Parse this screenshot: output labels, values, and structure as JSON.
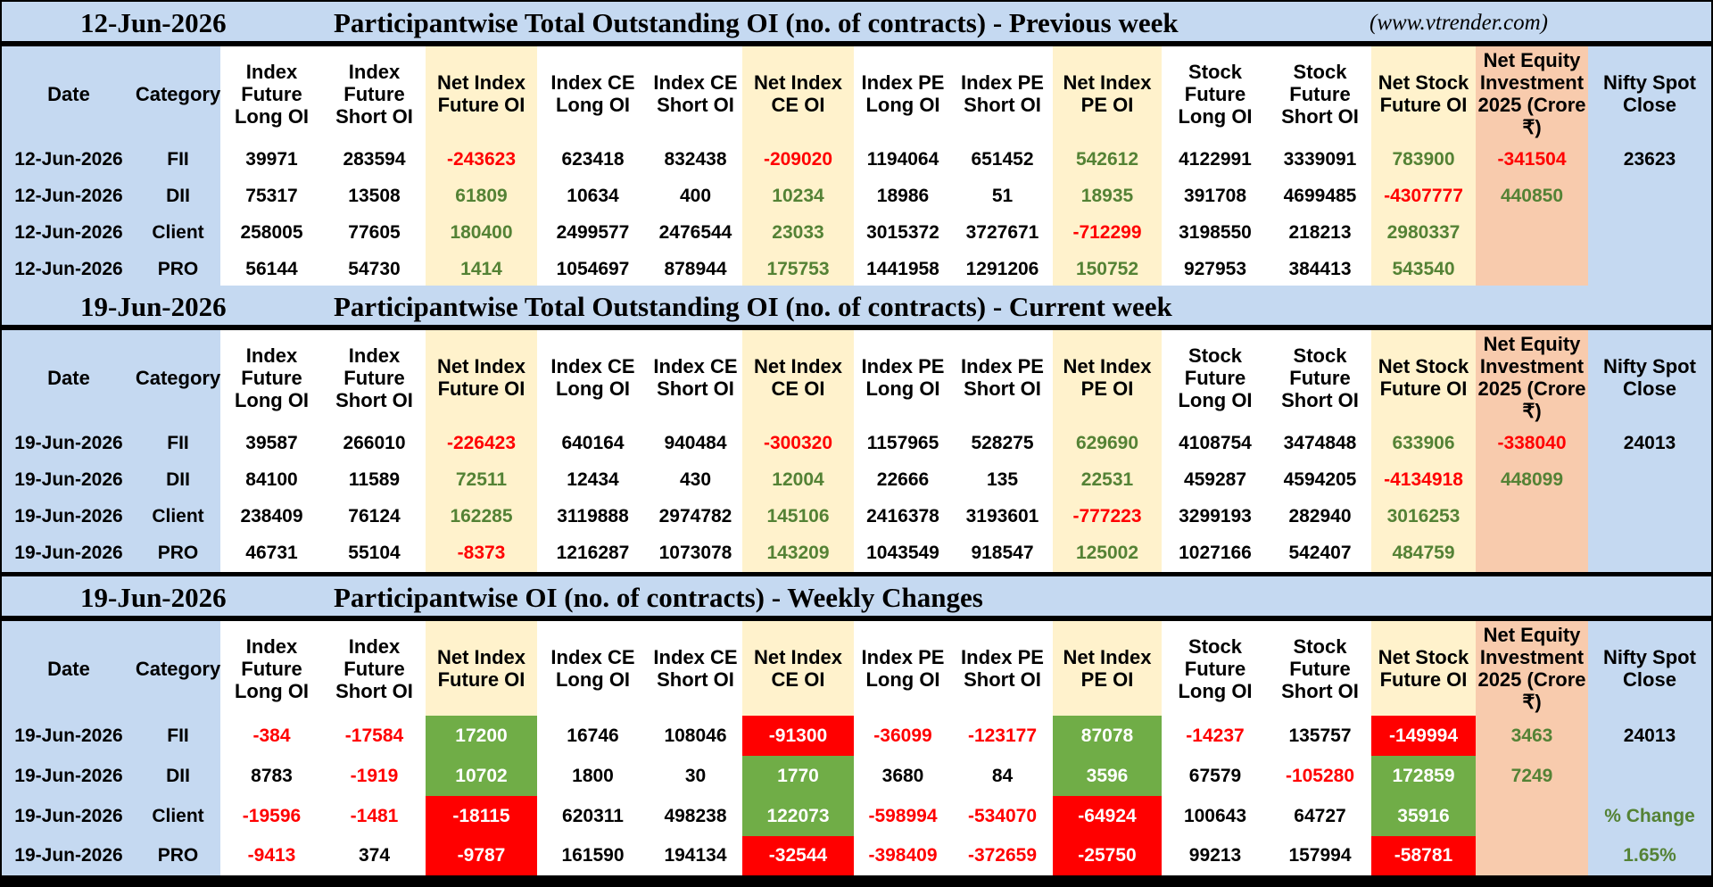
{
  "headers": [
    "Date",
    "Category",
    "Index Future Long OI",
    "Index Future Short OI",
    "Net Index Future OI",
    "Index CE Long OI",
    "Index CE Short OI",
    "Net Index CE OI",
    "Index PE Long OI",
    "Index PE Short OI",
    "Net Index PE OI",
    "Stock Future Long OI",
    "Stock Future Short OI",
    "Net Stock Future OI",
    "Net Equity Investment 2025 (Crore ₹)",
    "Nifty Spot Close"
  ],
  "sections": [
    {
      "date": "12-Jun-2026",
      "title": "Participantwise Total Outstanding OI (no. of contracts) - Previous week",
      "url": "(www.vtrender.com)",
      "rows": [
        {
          "date": "12-Jun-2026",
          "category": "FII",
          "values": [
            "39971",
            "283594",
            "-243623",
            "623418",
            "832438",
            "-209020",
            "1194064",
            "651452",
            "542612",
            "4122991",
            "3339091",
            "783900",
            "-341504",
            "23623"
          ]
        },
        {
          "date": "12-Jun-2026",
          "category": "DII",
          "values": [
            "75317",
            "13508",
            "61809",
            "10634",
            "400",
            "10234",
            "18986",
            "51",
            "18935",
            "391708",
            "4699485",
            "-4307777",
            "440850",
            ""
          ]
        },
        {
          "date": "12-Jun-2026",
          "category": "Client",
          "values": [
            "258005",
            "77605",
            "180400",
            "2499577",
            "2476544",
            "23033",
            "3015372",
            "3727671",
            "-712299",
            "3198550",
            "218213",
            "2980337",
            "",
            ""
          ]
        },
        {
          "date": "12-Jun-2026",
          "category": "PRO",
          "values": [
            "56144",
            "54730",
            "1414",
            "1054697",
            "878944",
            "175753",
            "1441958",
            "1291206",
            "150752",
            "927953",
            "384413",
            "543540",
            "",
            ""
          ]
        }
      ]
    },
    {
      "date": "19-Jun-2026",
      "title": "Participantwise Total Outstanding OI (no. of contracts) - Current week",
      "url": "",
      "rows": [
        {
          "date": "19-Jun-2026",
          "category": "FII",
          "values": [
            "39587",
            "266010",
            "-226423",
            "640164",
            "940484",
            "-300320",
            "1157965",
            "528275",
            "629690",
            "4108754",
            "3474848",
            "633906",
            "-338040",
            "24013"
          ]
        },
        {
          "date": "19-Jun-2026",
          "category": "DII",
          "values": [
            "84100",
            "11589",
            "72511",
            "12434",
            "430",
            "12004",
            "22666",
            "135",
            "22531",
            "459287",
            "4594205",
            "-4134918",
            "448099",
            ""
          ]
        },
        {
          "date": "19-Jun-2026",
          "category": "Client",
          "values": [
            "238409",
            "76124",
            "162285",
            "3119888",
            "2974782",
            "145106",
            "2416378",
            "3193601",
            "-777223",
            "3299193",
            "282940",
            "3016253",
            "",
            ""
          ]
        },
        {
          "date": "19-Jun-2026",
          "category": "PRO",
          "values": [
            "46731",
            "55104",
            "-8373",
            "1216287",
            "1073078",
            "143209",
            "1043549",
            "918547",
            "125002",
            "1027166",
            "542407",
            "484759",
            "",
            ""
          ]
        }
      ]
    },
    {
      "date": "19-Jun-2026",
      "title": "Participantwise OI (no. of contracts) - Weekly Changes",
      "url": "",
      "rows": [
        {
          "date": "19-Jun-2026",
          "category": "FII",
          "values": [
            "-384",
            "-17584",
            "17200",
            "16746",
            "108046",
            "-91300",
            "-36099",
            "-123177",
            "87078",
            "-14237",
            "135757",
            "-149994",
            "3463",
            "24013"
          ]
        },
        {
          "date": "19-Jun-2026",
          "category": "DII",
          "values": [
            "8783",
            "-1919",
            "10702",
            "1800",
            "30",
            "1770",
            "3680",
            "84",
            "3596",
            "67579",
            "-105280",
            "172859",
            "7249",
            ""
          ]
        },
        {
          "date": "19-Jun-2026",
          "category": "Client",
          "values": [
            "-19596",
            "-1481",
            "-18115",
            "620311",
            "498238",
            "122073",
            "-598994",
            "-534070",
            "-64924",
            "100643",
            "64727",
            "35916",
            "",
            "% Change"
          ]
        },
        {
          "date": "19-Jun-2026",
          "category": "PRO",
          "values": [
            "-9413",
            "374",
            "-9787",
            "161590",
            "194134",
            "-32544",
            "-398409",
            "-372659",
            "-25750",
            "99213",
            "157994",
            "-58781",
            "",
            "1.65%"
          ]
        }
      ]
    }
  ],
  "colors": {
    "header_blue": "#c5d9f1",
    "net_yellow": "#fff2cc",
    "equity_orange": "#f8cbad",
    "negative_red": "#ff0000",
    "positive_green": "#548235",
    "fill_red": "#ff0000",
    "fill_green": "#70ad47"
  }
}
